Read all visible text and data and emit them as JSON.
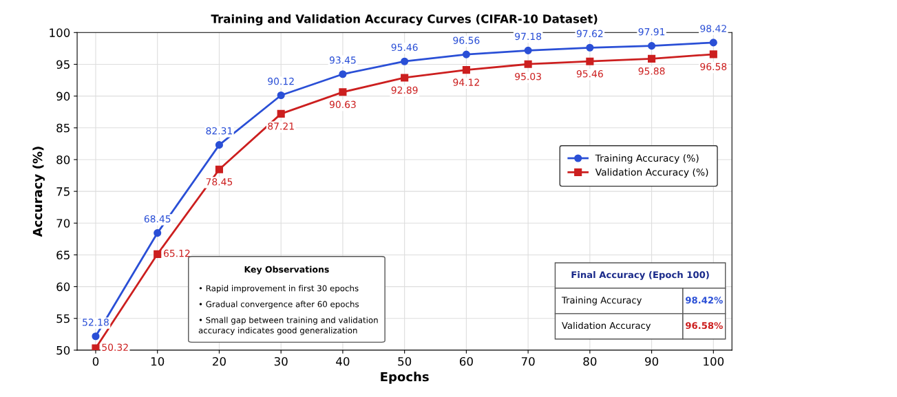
{
  "chart_data": {
    "type": "line",
    "title": "Training and Validation Accuracy Curves (CIFAR-10 Dataset)",
    "xlabel": "Epochs",
    "ylabel": "Accuracy (%)",
    "x": [
      0,
      10,
      20,
      30,
      40,
      50,
      60,
      70,
      80,
      90,
      100
    ],
    "series": [
      {
        "name": "Training Accuracy (%)",
        "color": "#2a4fd6",
        "marker": "circle",
        "values": [
          52.18,
          68.45,
          82.31,
          90.12,
          93.45,
          95.46,
          96.56,
          97.18,
          97.62,
          97.91,
          98.42
        ]
      },
      {
        "name": "Validation Accuracy (%)",
        "color": "#cc1f1f",
        "marker": "square",
        "values": [
          50.32,
          65.12,
          78.45,
          87.21,
          90.63,
          92.89,
          94.12,
          95.03,
          95.46,
          95.88,
          96.58
        ]
      }
    ],
    "data_labels": true,
    "xlim": [
      -3,
      103
    ],
    "ylim": [
      50,
      100
    ],
    "xticks": [
      0,
      10,
      20,
      30,
      40,
      50,
      60,
      70,
      80,
      90,
      100
    ],
    "yticks": [
      50,
      55,
      60,
      65,
      70,
      75,
      80,
      85,
      90,
      95,
      100
    ],
    "grid": true,
    "legend": "right",
    "line_style": "solid",
    "annotations": [
      "Key Observations",
      "• Rapid improvement in first 30 epochs",
      "• Gradual convergence after 60 epochs",
      "• Small gap between training and validation\naccuracy indicates good generalization",
      "Final Accuracy (Epoch 100)",
      "Training Accuracy",
      "98.42%",
      "Validation Accuracy",
      "96.58%"
    ]
  }
}
